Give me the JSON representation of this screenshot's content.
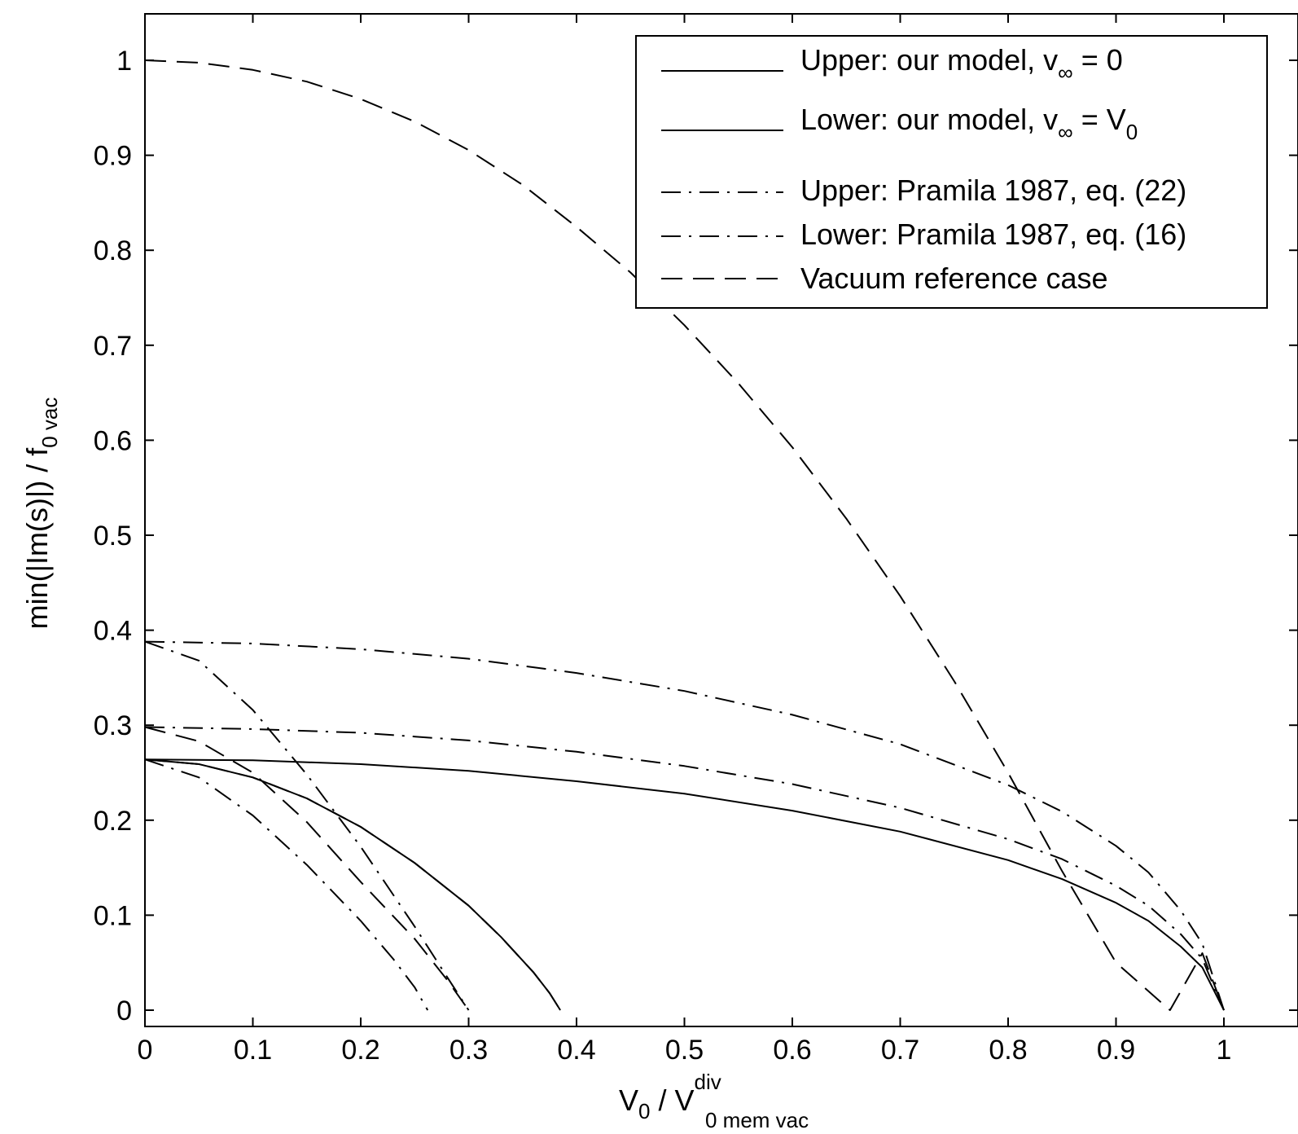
{
  "chart_data": {
    "type": "line",
    "xlabel": {
      "main": "V",
      "sub1": "0",
      "mid": " / V",
      "sup": "div",
      "sub2": "0 mem vac"
    },
    "ylabel": {
      "main": "min(|Im(s)|) / f",
      "sub": "0 vac"
    },
    "xlim": [
      0,
      1.05
    ],
    "ylim": [
      0,
      1.05
    ],
    "xticks": [
      0,
      0.1,
      0.2,
      0.3,
      0.4,
      0.5,
      0.6,
      0.7,
      0.8,
      0.9,
      1
    ],
    "xtick_labels": [
      "0",
      "0.1",
      "0.2",
      "0.3",
      "0.4",
      "0.5",
      "0.6",
      "0.7",
      "0.8",
      "0.9",
      "1"
    ],
    "yticks": [
      0,
      0.1,
      0.2,
      0.3,
      0.4,
      0.5,
      0.6,
      0.7,
      0.8,
      0.9,
      1
    ],
    "ytick_labels": [
      "0",
      "0.1",
      "0.2",
      "0.3",
      "0.4",
      "0.5",
      "0.6",
      "0.7",
      "0.8",
      "0.9",
      "1"
    ],
    "grid": false,
    "legend_position": "top-right",
    "legend": [
      {
        "text": "Upper: our model, v",
        "sub": "∞",
        "tail": " = 0",
        "tailsub": "",
        "style": "solid"
      },
      {
        "text": "Lower: our model, v",
        "sub": "∞",
        "tail": " = V",
        "tailsub": "0",
        "style": "solid"
      },
      {
        "text": "Upper: Pramila 1987, eq. (22)",
        "sub": "",
        "tail": "",
        "tailsub": "",
        "style": "dashdot"
      },
      {
        "text": "Lower: Pramila 1987, eq. (16)",
        "sub": "",
        "tail": "",
        "tailsub": "",
        "style": "dashdot"
      },
      {
        "text": "Vacuum reference case",
        "sub": "",
        "tail": "",
        "tailsub": "",
        "style": "dashed"
      }
    ],
    "series": [
      {
        "style": "dashed",
        "x": [
          0,
          0.05,
          0.1,
          0.15,
          0.2,
          0.25,
          0.3,
          0.35,
          0.4,
          0.45,
          0.5,
          0.55,
          0.6,
          0.65,
          0.7,
          0.75,
          0.8,
          0.85,
          0.9,
          0.95,
          0.98,
          1.0
        ],
        "y": [
          1.0,
          0.9975,
          0.9899,
          0.9775,
          0.9592,
          0.9354,
          0.9055,
          0.8689,
          0.8246,
          0.7766,
          0.7211,
          0.6599,
          0.5926,
          0.5175,
          0.4359,
          0.3464,
          0.25,
          0.1464,
          0.0501,
          -0.0464,
          0.06,
          0.0
        ]
      },
      {
        "style": "dashdot",
        "x": [
          0,
          0.1,
          0.2,
          0.3,
          0.4,
          0.5,
          0.6,
          0.7,
          0.8,
          0.85,
          0.9,
          0.93,
          0.96,
          0.98,
          1.0
        ],
        "y": [
          0.388,
          0.386,
          0.38,
          0.37,
          0.355,
          0.336,
          0.311,
          0.28,
          0.237,
          0.209,
          0.173,
          0.145,
          0.105,
          0.07,
          0.0
        ]
      },
      {
        "style": "dashdot",
        "x": [
          0,
          0.1,
          0.2,
          0.3,
          0.4,
          0.5,
          0.6,
          0.7,
          0.8,
          0.85,
          0.9,
          0.93,
          0.96,
          0.98,
          1.0
        ],
        "y": [
          0.298,
          0.296,
          0.292,
          0.284,
          0.272,
          0.257,
          0.238,
          0.213,
          0.18,
          0.159,
          0.131,
          0.11,
          0.08,
          0.054,
          0.0
        ]
      },
      {
        "style": "solid",
        "x": [
          0,
          0.1,
          0.2,
          0.3,
          0.4,
          0.5,
          0.6,
          0.7,
          0.8,
          0.85,
          0.9,
          0.93,
          0.96,
          0.98,
          1.0
        ],
        "y": [
          0.264,
          0.263,
          0.259,
          0.252,
          0.241,
          0.228,
          0.21,
          0.188,
          0.158,
          0.138,
          0.113,
          0.094,
          0.067,
          0.045,
          0.0
        ]
      },
      {
        "style": "solid",
        "x": [
          0,
          0.05,
          0.1,
          0.15,
          0.2,
          0.25,
          0.3,
          0.33,
          0.36,
          0.375,
          0.385
        ],
        "y": [
          0.264,
          0.259,
          0.245,
          0.223,
          0.193,
          0.155,
          0.11,
          0.077,
          0.04,
          0.018,
          0.0
        ]
      },
      {
        "style": "dashed",
        "x": [
          0,
          0.05,
          0.1,
          0.15,
          0.2,
          0.25,
          0.3,
          0.33,
          0.36,
          0.375,
          0.385
        ],
        "y": [
          0.264,
          0.259,
          0.245,
          0.223,
          0.193,
          0.155,
          0.11,
          0.077,
          0.04,
          0.018,
          0.0
        ]
      },
      {
        "style": "dashdot",
        "x": [
          0,
          0.05,
          0.1,
          0.15,
          0.2,
          0.25,
          0.28,
          0.3
        ],
        "y": [
          0.388,
          0.368,
          0.316,
          0.248,
          0.172,
          0.088,
          0.035,
          0.0
        ]
      },
      {
        "style": "dashdot",
        "x": [
          0,
          0.05,
          0.1,
          0.15,
          0.2,
          0.23,
          0.25,
          0.262
        ],
        "y": [
          0.264,
          0.245,
          0.205,
          0.153,
          0.094,
          0.054,
          0.024,
          0.0
        ]
      },
      {
        "style": "dashed",
        "x": [
          0,
          0.05,
          0.1,
          0.15,
          0.2,
          0.25,
          0.28,
          0.3
        ],
        "y": [
          0.298,
          0.283,
          0.25,
          0.198,
          0.135,
          0.075,
          0.032,
          0.0
        ]
      }
    ]
  }
}
